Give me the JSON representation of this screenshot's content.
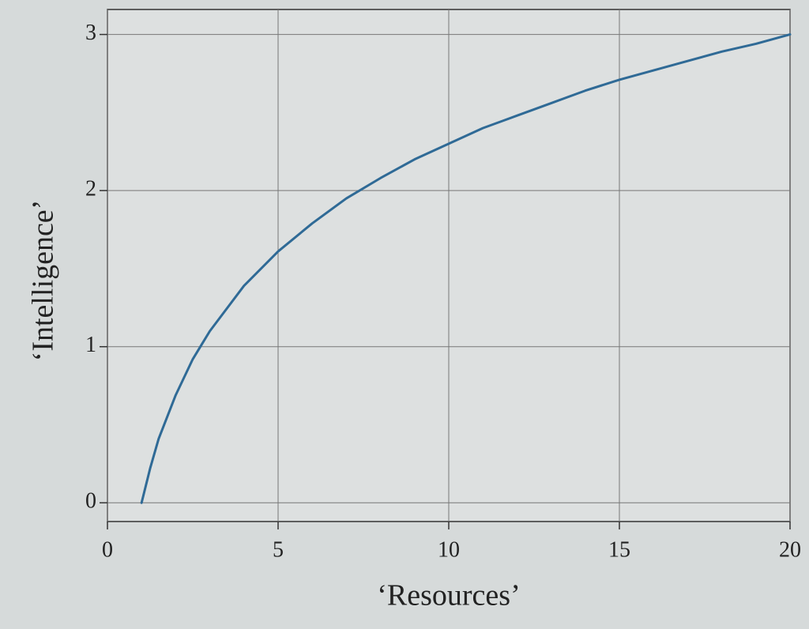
{
  "chart_data": {
    "type": "line",
    "x_label": "‘Resources’",
    "y_label": "‘Intelligence’",
    "x": [
      1,
      1.25,
      1.5,
      2,
      2.5,
      3,
      4,
      5,
      6,
      7,
      8,
      9,
      10,
      11,
      12,
      13,
      14,
      15,
      16,
      17,
      18,
      19,
      20
    ],
    "series": [
      {
        "color": "#2f6a96",
        "values": [
          0,
          0.22,
          0.41,
          0.69,
          0.92,
          1.1,
          1.39,
          1.61,
          1.79,
          1.95,
          2.08,
          2.2,
          2.3,
          2.4,
          2.48,
          2.56,
          2.64,
          2.71,
          2.77,
          2.83,
          2.89,
          2.94,
          3.0
        ]
      }
    ],
    "xlim": [
      0,
      20
    ],
    "xticks": [
      0,
      5,
      10,
      15,
      20
    ],
    "ylim": [
      -0.12,
      3.16
    ],
    "yticks": [
      0,
      1,
      2,
      3
    ],
    "grid": true
  }
}
